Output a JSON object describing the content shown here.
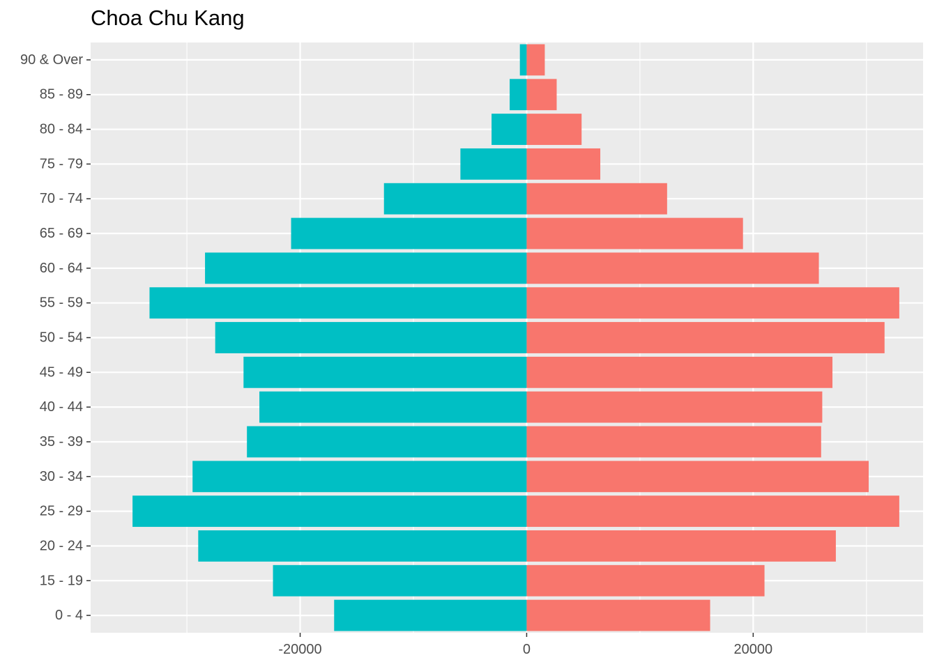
{
  "chart_data": {
    "type": "bar",
    "orientation": "horizontal",
    "title": "Choa Chu Kang",
    "xlabel": "",
    "ylabel": "",
    "categories": [
      "0 - 4",
      "15 - 19",
      "20 - 24",
      "25 - 29",
      "30 - 34",
      "35 - 39",
      "40 - 44",
      "45 - 49",
      "50 - 54",
      "55 - 59",
      "60 - 64",
      "65 - 69",
      "70 - 74",
      "75 - 79",
      "80 - 84",
      "85 - 89",
      "90 & Over"
    ],
    "series": [
      {
        "color": "#00BFC4",
        "values": [
          -17000,
          -22400,
          -29000,
          -34800,
          -29500,
          -24700,
          -23600,
          -25000,
          -27500,
          -33300,
          -28400,
          -20800,
          -12600,
          -5850,
          -3100,
          -1500,
          -600
        ]
      },
      {
        "color": "#F8766D",
        "values": [
          16200,
          21000,
          27300,
          32900,
          30200,
          26000,
          26100,
          27000,
          31600,
          32900,
          25800,
          19100,
          12400,
          6500,
          4850,
          2650,
          1600
        ]
      }
    ],
    "xlim": [
      -38500,
      35000
    ],
    "xticks": [
      -20000,
      0,
      20000
    ],
    "xtick_labels": [
      "-20000",
      "0",
      "20000"
    ],
    "grid": true,
    "panel_background": "#EBEBEB",
    "grid_color": "#FFFFFF"
  }
}
